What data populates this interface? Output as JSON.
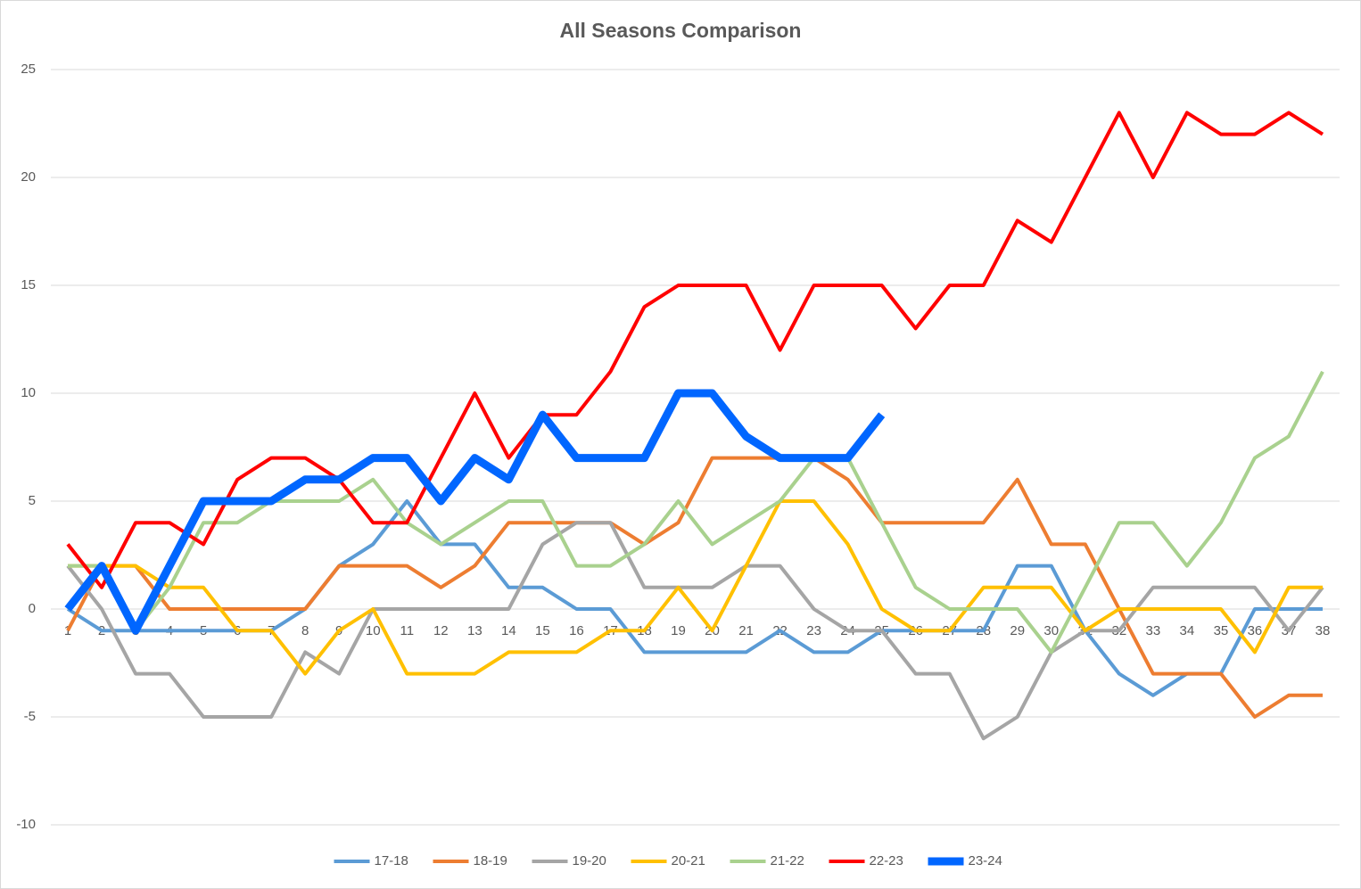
{
  "chart_data": {
    "type": "line",
    "title": "All Seasons Comparison",
    "categories": [
      "1",
      "2",
      "3",
      "4",
      "5",
      "6",
      "7",
      "8",
      "9",
      "10",
      "11",
      "12",
      "13",
      "14",
      "15",
      "16",
      "17",
      "18",
      "19",
      "20",
      "21",
      "22",
      "23",
      "24",
      "25",
      "26",
      "27",
      "28",
      "29",
      "30",
      "31",
      "32",
      "33",
      "34",
      "35",
      "36",
      "37",
      "38"
    ],
    "series": [
      {
        "name": "17-18",
        "color": "#5b9bd5",
        "line_width": 4,
        "values": [
          0,
          -1,
          -1,
          -1,
          -1,
          -1,
          -1,
          0,
          2,
          3,
          5,
          3,
          3,
          1,
          1,
          0,
          0,
          -2,
          -2,
          -2,
          -2,
          -1,
          -2,
          -2,
          -1,
          -1,
          -1,
          -1,
          2,
          2,
          -1,
          -3,
          -4,
          -3,
          -3,
          0,
          0,
          0
        ]
      },
      {
        "name": "18-19",
        "color": "#ed7d31",
        "line_width": 4,
        "values": [
          -1,
          2,
          2,
          0,
          0,
          0,
          0,
          0,
          2,
          2,
          2,
          1,
          2,
          4,
          4,
          4,
          4,
          3,
          4,
          7,
          7,
          7,
          7,
          6,
          4,
          4,
          4,
          4,
          6,
          3,
          3,
          0,
          -3,
          -3,
          -3,
          -5,
          -4,
          -4
        ]
      },
      {
        "name": "19-20",
        "color": "#a5a5a5",
        "line_width": 4,
        "values": [
          2,
          0,
          -3,
          -3,
          -5,
          -5,
          -5,
          -2,
          -3,
          0,
          0,
          0,
          0,
          0,
          3,
          4,
          4,
          1,
          1,
          1,
          2,
          2,
          0,
          -1,
          -1,
          -3,
          -3,
          -6,
          -5,
          -2,
          -1,
          -1,
          1,
          1,
          1,
          1,
          -1,
          1
        ]
      },
      {
        "name": "20-21",
        "color": "#ffc000",
        "line_width": 4,
        "values": [
          2,
          2,
          2,
          1,
          1,
          -1,
          -1,
          -3,
          -1,
          0,
          -3,
          -3,
          -3,
          -2,
          -2,
          -2,
          -1,
          -1,
          1,
          -1,
          2,
          5,
          5,
          3,
          0,
          -1,
          -1,
          1,
          1,
          1,
          -1,
          0,
          0,
          0,
          0,
          -2,
          1,
          1
        ]
      },
      {
        "name": "21-22",
        "color": "#a9d18e",
        "line_width": 4,
        "values": [
          2,
          2,
          -1,
          1,
          4,
          4,
          5,
          5,
          5,
          6,
          4,
          3,
          4,
          5,
          5,
          2,
          2,
          3,
          5,
          3,
          4,
          5,
          7,
          7,
          4,
          1,
          0,
          0,
          0,
          -2,
          1,
          4,
          4,
          2,
          4,
          7,
          8,
          11
        ]
      },
      {
        "name": "22-23",
        "color": "#ff0000",
        "line_width": 4,
        "values": [
          3,
          1,
          4,
          4,
          3,
          6,
          7,
          7,
          6,
          4,
          4,
          7,
          10,
          7,
          9,
          9,
          11,
          14,
          15,
          15,
          15,
          12,
          15,
          15,
          15,
          13,
          15,
          15,
          18,
          17,
          20,
          23,
          20,
          23,
          22,
          22,
          23,
          22
        ]
      },
      {
        "name": "23-24",
        "color": "#0066ff",
        "line_width": 9,
        "values": [
          0,
          2,
          -1,
          2,
          5,
          5,
          5,
          6,
          6,
          7,
          7,
          5,
          7,
          6,
          9,
          7,
          7,
          7,
          10,
          10,
          8,
          7,
          7,
          7,
          9,
          null,
          null,
          null,
          null,
          null,
          null,
          null,
          null,
          null,
          null,
          null,
          null,
          null
        ]
      }
    ],
    "ylim": [
      -10,
      25
    ],
    "yticks": [
      -10,
      -5,
      0,
      5,
      10,
      15,
      20,
      25
    ],
    "grid": true,
    "legend": "bottom"
  }
}
